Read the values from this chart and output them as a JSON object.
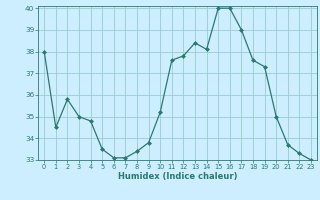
{
  "x": [
    0,
    1,
    2,
    3,
    4,
    5,
    6,
    7,
    8,
    9,
    10,
    11,
    12,
    13,
    14,
    15,
    16,
    17,
    18,
    19,
    20,
    21,
    22,
    23
  ],
  "y": [
    38.0,
    34.5,
    35.8,
    35.0,
    34.8,
    33.5,
    33.1,
    33.1,
    33.4,
    33.8,
    35.2,
    37.6,
    37.8,
    38.4,
    38.1,
    40.0,
    40.0,
    39.0,
    37.6,
    37.3,
    35.0,
    33.7,
    33.3,
    33.0
  ],
  "title": "",
  "xlabel": "Humidex (Indice chaleur)",
  "ylabel": "",
  "bg_color": "#cceeff",
  "grid_color": "#99cccc",
  "line_color": "#2a7a6f",
  "ylim": [
    33,
    40
  ],
  "xlim": [
    -0.5,
    23.5
  ],
  "yticks": [
    33,
    34,
    35,
    36,
    37,
    38,
    39,
    40
  ],
  "xticks": [
    0,
    1,
    2,
    3,
    4,
    5,
    6,
    7,
    8,
    9,
    10,
    11,
    12,
    13,
    14,
    15,
    16,
    17,
    18,
    19,
    20,
    21,
    22,
    23
  ]
}
